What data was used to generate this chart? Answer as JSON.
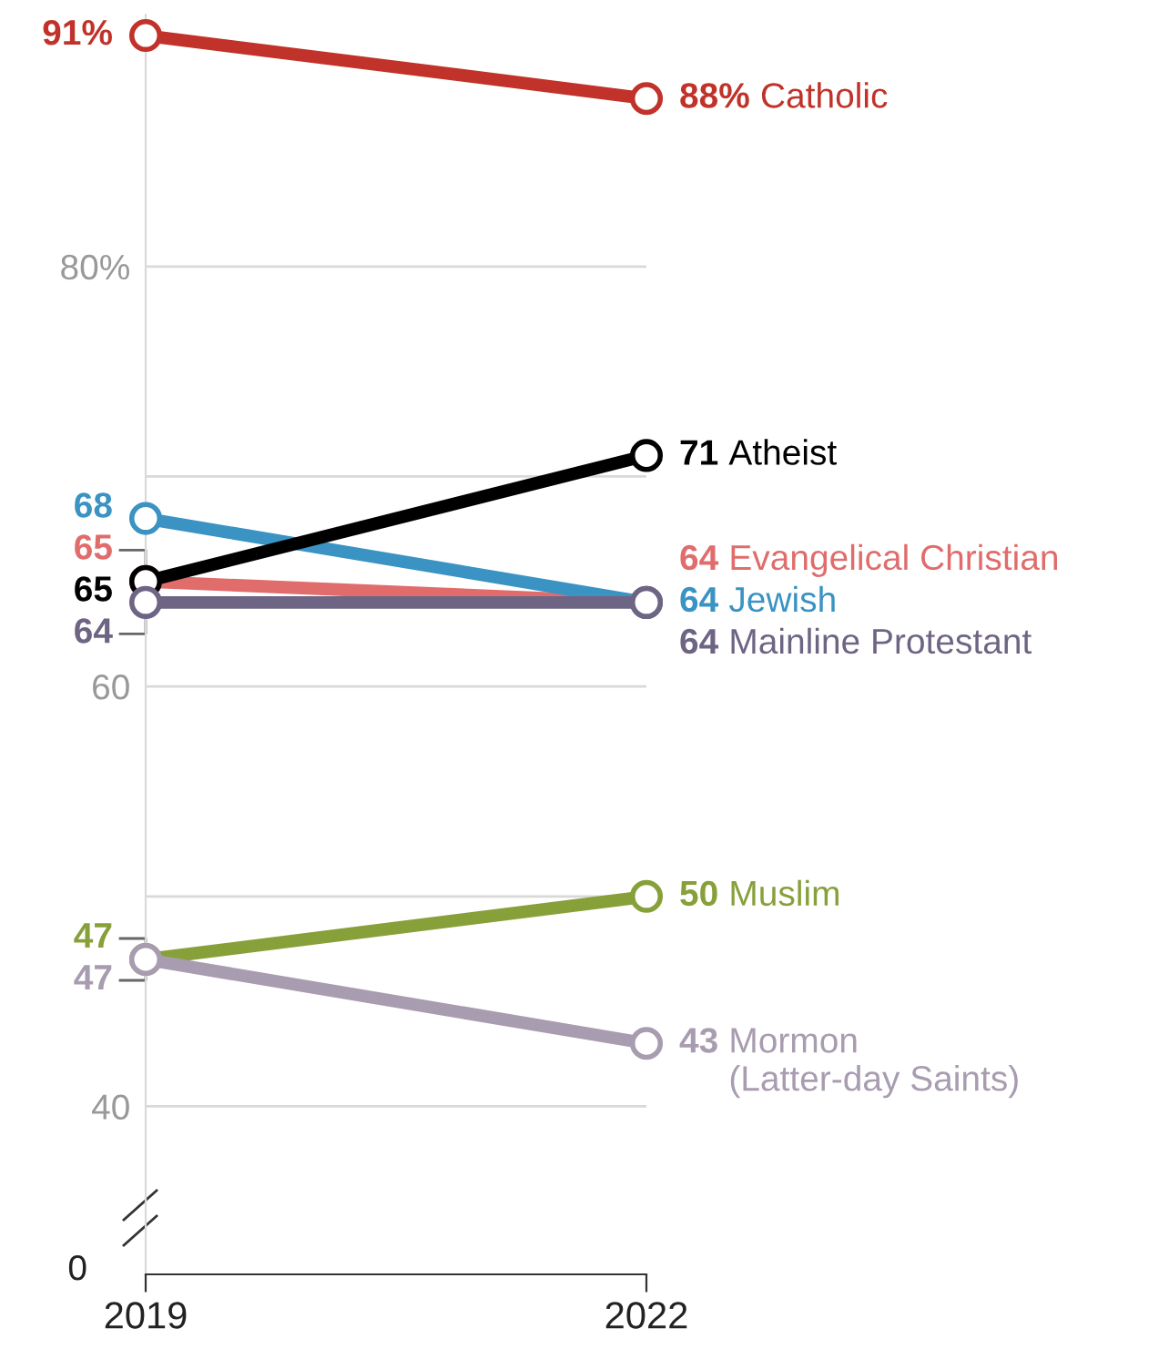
{
  "chart_data": {
    "type": "line",
    "categories": [
      "2019",
      "2022"
    ],
    "ylim": [
      32,
      92
    ],
    "yticks": [
      {
        "value": 40,
        "label": "40"
      },
      {
        "value": 60,
        "label": "60"
      },
      {
        "value": 80,
        "label": "80%"
      }
    ],
    "ref_lines": [
      {
        "axis": "y",
        "value": 40,
        "color": "#d9d9d9"
      },
      {
        "axis": "y",
        "value": 50,
        "color": "#d9d9d9"
      },
      {
        "axis": "y",
        "value": 60,
        "color": "#d9d9d9"
      },
      {
        "axis": "y",
        "value": 70,
        "color": "#d9d9d9"
      },
      {
        "axis": "y",
        "value": 80,
        "color": "#d9d9d9"
      }
    ],
    "marker": "circle",
    "annotations": [
      "0"
    ],
    "series": [
      {
        "name": "Catholic",
        "color": "#c0322a",
        "values": [
          91,
          88
        ],
        "value_labels": [
          "91%",
          "88%"
        ]
      },
      {
        "name": "Evangelical Christian",
        "color": "#e06c6c",
        "values": [
          65,
          64
        ],
        "value_labels": [
          "65",
          "64"
        ]
      },
      {
        "name": "Jewish",
        "color": "#3a93c3",
        "values": [
          68,
          64
        ],
        "value_labels": [
          "68",
          "64"
        ]
      },
      {
        "name": "Atheist",
        "color": "#000000",
        "values": [
          65,
          71
        ],
        "value_labels": [
          "65",
          "71"
        ]
      },
      {
        "name": "Mainline Protestant",
        "color": "#6e6483",
        "values": [
          64,
          64
        ],
        "value_labels": [
          "64",
          "64"
        ]
      },
      {
        "name": "Muslim",
        "color": "#87a03a",
        "values": [
          47,
          50
        ],
        "value_labels": [
          "47",
          "50"
        ]
      },
      {
        "name": "Mormon\n(Latter-day Saints)",
        "color": "#a89cb0",
        "values": [
          47,
          43
        ],
        "value_labels": [
          "47",
          "43"
        ]
      }
    ]
  }
}
